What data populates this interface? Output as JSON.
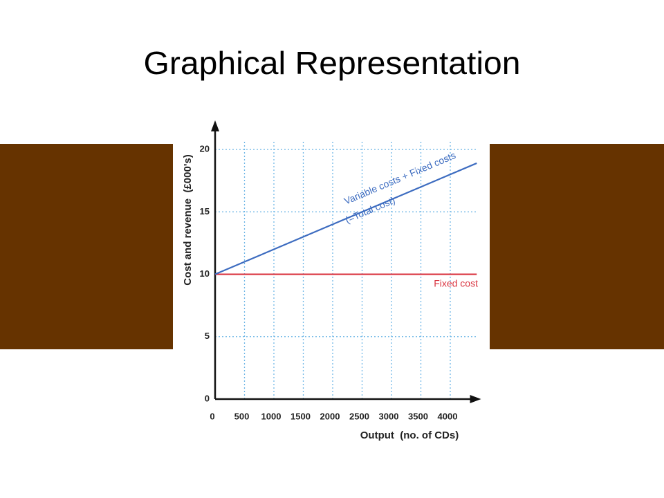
{
  "chart_data": {
    "type": "line",
    "title": "Graphical Representation",
    "x_label": "Output  (no. of CDs)",
    "y_label": "Cost and revenue  (£000's)",
    "xlim": [
      0,
      4500
    ],
    "ylim": [
      0,
      22
    ],
    "xticks": [
      0,
      500,
      1000,
      1500,
      2000,
      2500,
      3000,
      3500,
      4000
    ],
    "yticks": [
      0,
      5,
      10,
      15,
      20
    ],
    "grid": true,
    "series": [
      {
        "name": "Fixed cost",
        "color": "#d9333f",
        "x": [
          0,
          4450
        ],
        "values": [
          10,
          10
        ]
      },
      {
        "name": "Variable costs + Fixed costs",
        "color": "#3d6cc0",
        "x": [
          0,
          4450
        ],
        "values": [
          10,
          18.9
        ]
      }
    ],
    "annotations": [
      "(=Total cost)"
    ]
  }
}
